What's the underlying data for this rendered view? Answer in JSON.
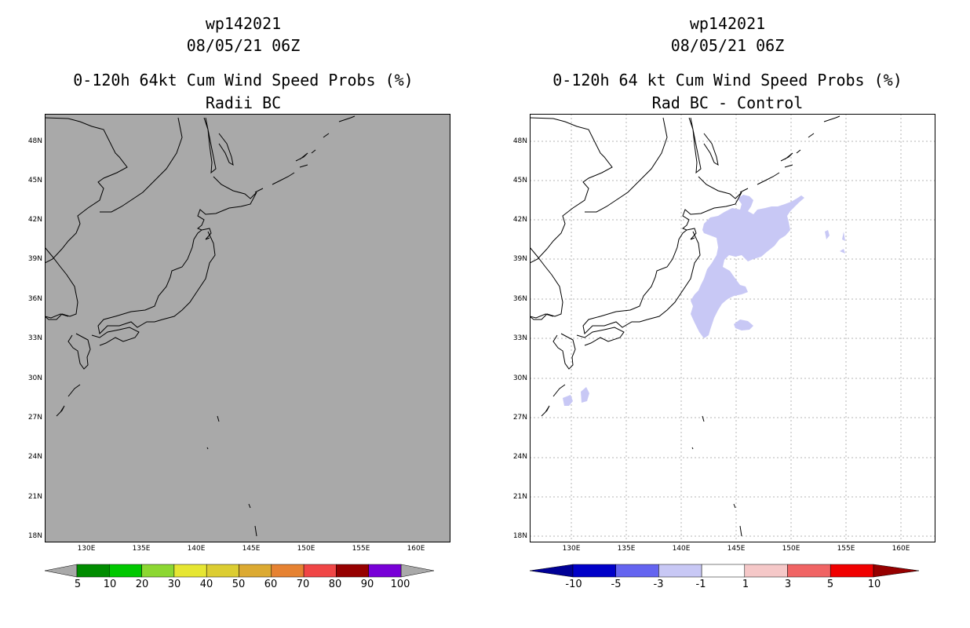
{
  "left_panel": {
    "storm_id": "wp142021",
    "datetime": "08/05/21 06Z",
    "product": "0-120h 64kt Cum Wind Speed Probs (%)",
    "subtitle": "Radii BC",
    "background_color": "#a9a9a9",
    "colorbar": {
      "labels": [
        "5",
        "10",
        "20",
        "30",
        "40",
        "50",
        "60",
        "70",
        "80",
        "90",
        "100"
      ],
      "colors": [
        "#008c00",
        "#00c800",
        "#8cd732",
        "#e6e632",
        "#dccd32",
        "#dcaa32",
        "#e68232",
        "#f04646",
        "#960000",
        "#7800d7"
      ],
      "end_color": "#a9a9a9"
    }
  },
  "right_panel": {
    "storm_id": "wp142021",
    "datetime": "08/05/21 06Z",
    "product": "0-120h 64 kt Cum Wind Speed Probs (%)",
    "subtitle": "Rad BC - Control",
    "shading_color": "#c8c8f5",
    "colorbar": {
      "labels": [
        "-10",
        "-5",
        "-3",
        "-1",
        "1",
        "3",
        "5",
        "10"
      ],
      "colors": [
        "#0000c8",
        "#6464f0",
        "#c8c8f5",
        "#ffffff",
        "#f5c8c8",
        "#f06464",
        "#f00000"
      ],
      "low_color": "#000096",
      "high_color": "#960000"
    }
  },
  "axes": {
    "lat_labels": [
      "48N",
      "45N",
      "42N",
      "39N",
      "36N",
      "33N",
      "30N",
      "27N",
      "24N",
      "21N",
      "18N"
    ],
    "lon_labels": [
      "130E",
      "135E",
      "140E",
      "145E",
      "150E",
      "155E",
      "160E"
    ]
  }
}
